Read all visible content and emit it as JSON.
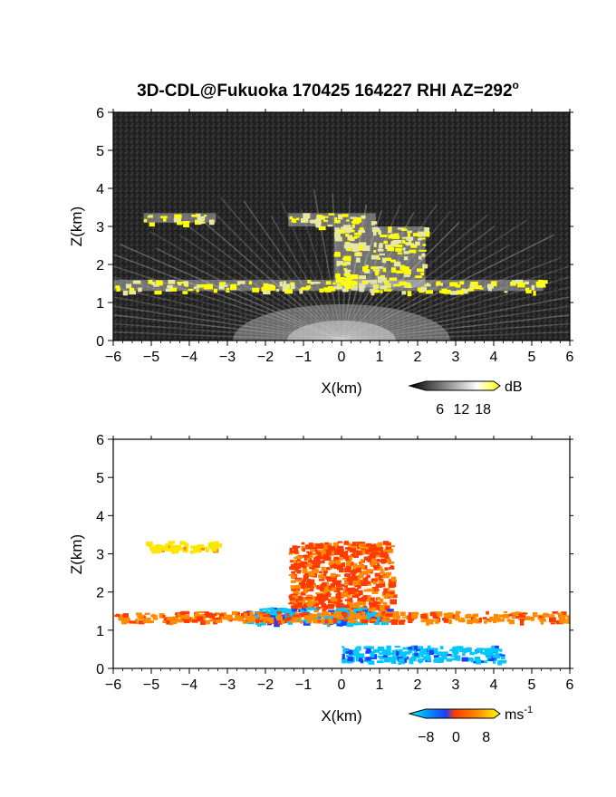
{
  "title": "3D-CDL@Fukuoka 170425 164227 RHI AZ=292",
  "title_sup": "o",
  "chart_data": [
    {
      "type": "heatmap",
      "panel": "reflectivity",
      "xlabel": "X(km)",
      "ylabel": "Z(km)",
      "xlim": [
        -6,
        6
      ],
      "ylim": [
        0,
        6
      ],
      "x_ticks": [
        "-6",
        "-5",
        "-4",
        "-3",
        "-2",
        "-1",
        "0",
        "1",
        "2",
        "3",
        "4",
        "5",
        "6"
      ],
      "y_ticks": [
        "0",
        "1",
        "2",
        "3",
        "4",
        "5",
        "6"
      ],
      "colorbar": {
        "unit": "dB",
        "ticks": [
          "6",
          "12",
          "18"
        ],
        "range": [
          0,
          21
        ]
      },
      "colors": {
        "background": "#262626",
        "beam": "#c8c8c8",
        "strong": "#ffff00"
      },
      "features": [
        {
          "name": "upper cloud layer",
          "x": [
            -5.2,
            -3.3
          ],
          "z": [
            3.1,
            3.35
          ]
        },
        {
          "name": "convective plume top",
          "x": [
            -1.4,
            0.9
          ],
          "z": [
            3.0,
            3.35
          ]
        },
        {
          "name": "plume column",
          "x": [
            -0.2,
            2.2
          ],
          "z": [
            1.4,
            3.0
          ]
        },
        {
          "name": "low cloud layer",
          "x": [
            -6.0,
            5.3
          ],
          "z": [
            1.3,
            1.6
          ]
        }
      ]
    },
    {
      "type": "heatmap",
      "panel": "doppler velocity",
      "xlabel": "X(km)",
      "ylabel": "Z(km)",
      "xlim": [
        -6,
        6
      ],
      "ylim": [
        0,
        6
      ],
      "x_ticks": [
        "-6",
        "-5",
        "-4",
        "-3",
        "-2",
        "-1",
        "0",
        "1",
        "2",
        "3",
        "4",
        "5",
        "6"
      ],
      "y_ticks": [
        "0",
        "1",
        "2",
        "3",
        "4",
        "5",
        "6"
      ],
      "colorbar": {
        "unit": "ms",
        "unit_sup": "-1",
        "ticks": [
          "-8",
          "0",
          "8"
        ],
        "range": [
          -10,
          10
        ]
      },
      "colors": {
        "negative": "#1f3cff",
        "near_zero": "#ff3b00",
        "positive": "#ffe600",
        "cyan": "#00e5ff"
      },
      "features": [
        {
          "name": "upper layer",
          "x": [
            -5.2,
            -3.3
          ],
          "z": [
            3.1,
            3.35
          ],
          "velocity": 8
        },
        {
          "name": "plume",
          "x": [
            -1.4,
            1.3
          ],
          "z": [
            1.4,
            3.35
          ],
          "velocity": 2
        },
        {
          "name": "receding region",
          "x": [
            -2.5,
            1.2
          ],
          "z": [
            1.2,
            1.6
          ],
          "velocity": -7
        },
        {
          "name": "low layer",
          "x": [
            -6.0,
            6.0
          ],
          "z": [
            1.25,
            1.5
          ],
          "velocity": 3
        },
        {
          "name": "near-ground negative",
          "x": [
            0.0,
            4.2
          ],
          "z": [
            0.2,
            0.6
          ],
          "velocity": -7
        }
      ]
    }
  ]
}
